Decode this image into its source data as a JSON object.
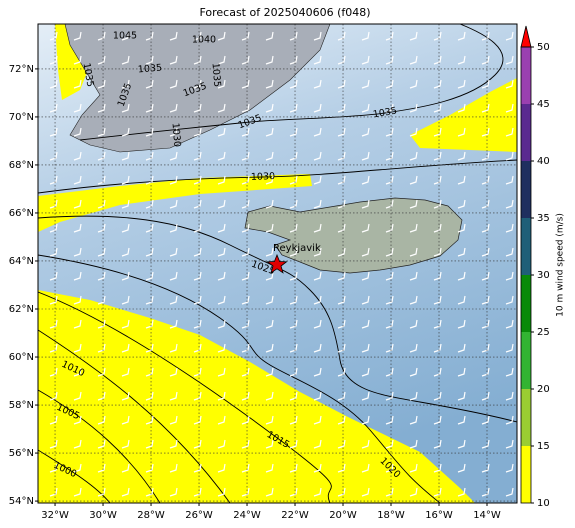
{
  "map": {
    "title": "Forecast of 2025040606 (f048)",
    "lon_lim": [
      -32.71,
      -12.75
    ],
    "lat_lim": [
      53.92,
      73.87
    ],
    "grid": true,
    "lon_ticks": [
      {
        "value": -32,
        "label": "32°W"
      },
      {
        "value": -30,
        "label": "30°W"
      },
      {
        "value": -28,
        "label": "28°W"
      },
      {
        "value": -26,
        "label": "26°W"
      },
      {
        "value": -24,
        "label": "24°W"
      },
      {
        "value": -22,
        "label": "22°W"
      },
      {
        "value": -20,
        "label": "20°W"
      },
      {
        "value": -18,
        "label": "18°W"
      },
      {
        "value": -16,
        "label": "16°W"
      },
      {
        "value": -14,
        "label": "14°W"
      }
    ],
    "lat_ticks": [
      {
        "value": 72,
        "label": "72°N"
      },
      {
        "value": 70,
        "label": "70°N"
      },
      {
        "value": 68,
        "label": "68°N"
      },
      {
        "value": 66,
        "label": "66°N"
      },
      {
        "value": 64,
        "label": "64°N"
      },
      {
        "value": 62,
        "label": "62°N"
      },
      {
        "value": 60,
        "label": "60°N"
      },
      {
        "value": 58,
        "label": "58°N"
      },
      {
        "value": 56,
        "label": "56°N"
      },
      {
        "value": 54,
        "label": "54°N"
      }
    ],
    "city": "Reykjavik",
    "contour_labels": [
      1045,
      1040,
      1035,
      1035,
      1035,
      1035,
      1035,
      1030,
      1035,
      1035,
      1030,
      1025,
      1010,
      1005,
      1000,
      1015,
      1020
    ],
    "colorbar": {
      "label": "10 m wind speed (m/s)",
      "lim": [
        10,
        50
      ],
      "ticks": [
        10,
        15,
        20,
        25,
        30,
        35,
        40,
        45,
        50
      ],
      "colors": [
        "#ffff00",
        "#9acd32",
        "#32b432",
        "#098a09",
        "#1f5f78",
        "#1f2f5f",
        "#5a2a90",
        "#9a40b0"
      ],
      "extend_color": "#ff0000"
    }
  }
}
